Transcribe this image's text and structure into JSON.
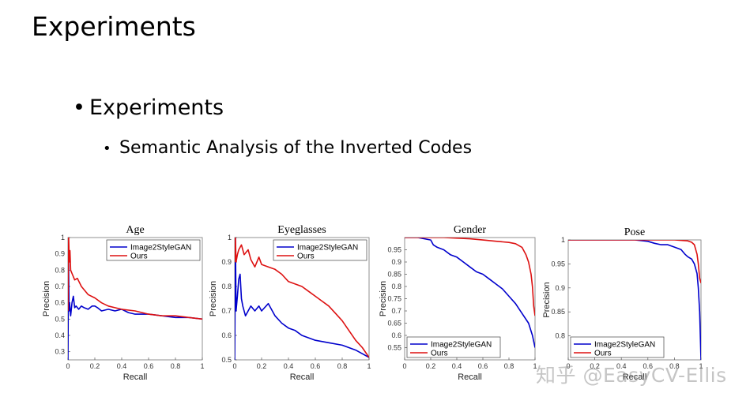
{
  "slide": {
    "title": "Experiments",
    "bullet_level1": "Experiments",
    "bullet_level2": "Semantic Analysis of the Inverted Codes",
    "bullet_glyph": "•",
    "watermark": "知乎 @EasyCV-Ellis"
  },
  "colors": {
    "image2stylegan": "#0000cc",
    "ours": "#dd1111"
  },
  "chart_data": [
    {
      "type": "line",
      "title": "Age",
      "xlabel": "Recall",
      "ylabel": "Precision",
      "xlim": [
        0,
        1
      ],
      "ylim": [
        0.25,
        1
      ],
      "xticks": [
        0,
        0.2,
        0.4,
        0.6,
        0.8,
        1
      ],
      "xtick_labels": [
        "0",
        "0.2",
        "0.4",
        "0.6",
        "0.8",
        "1"
      ],
      "yticks": [
        0.3,
        0.4,
        0.5,
        0.6,
        0.7,
        0.8,
        0.9,
        1
      ],
      "ytick_labels": [
        "0.3",
        "0.4",
        "0.5",
        "0.6",
        "0.7",
        "0.8",
        "0.9",
        "1"
      ],
      "legend": "top-right",
      "series": [
        {
          "name": "Image2StyleGAN",
          "color": "#0000cc",
          "x": [
            0,
            0.004,
            0.008,
            0.012,
            0.02,
            0.03,
            0.04,
            0.05,
            0.06,
            0.08,
            0.1,
            0.12,
            0.15,
            0.18,
            0.2,
            0.22,
            0.25,
            0.3,
            0.35,
            0.4,
            0.45,
            0.5,
            0.6,
            0.7,
            0.8,
            0.9,
            1.0
          ],
          "y": [
            0.25,
            0.9,
            0.55,
            0.6,
            0.52,
            0.6,
            0.64,
            0.57,
            0.58,
            0.56,
            0.58,
            0.57,
            0.56,
            0.58,
            0.58,
            0.57,
            0.55,
            0.56,
            0.55,
            0.56,
            0.54,
            0.53,
            0.53,
            0.52,
            0.51,
            0.51,
            0.5
          ]
        },
        {
          "name": "Ours",
          "color": "#dd1111",
          "x": [
            0,
            0.005,
            0.01,
            0.015,
            0.02,
            0.03,
            0.04,
            0.05,
            0.07,
            0.1,
            0.12,
            0.15,
            0.2,
            0.25,
            0.3,
            0.35,
            0.4,
            0.5,
            0.6,
            0.7,
            0.8,
            0.9,
            1.0
          ],
          "y": [
            0.55,
            1.0,
            0.85,
            0.92,
            0.8,
            0.78,
            0.76,
            0.74,
            0.75,
            0.7,
            0.68,
            0.65,
            0.63,
            0.6,
            0.58,
            0.57,
            0.56,
            0.55,
            0.53,
            0.52,
            0.52,
            0.51,
            0.5
          ]
        }
      ]
    },
    {
      "type": "line",
      "title": "Eyeglasses",
      "xlabel": "Recall",
      "ylabel": "Precision",
      "xlim": [
        0,
        1
      ],
      "ylim": [
        0.5,
        1
      ],
      "xticks": [
        0,
        0.2,
        0.4,
        0.6,
        0.8,
        1
      ],
      "xtick_labels": [
        "0",
        "0.2",
        "0.4",
        "0.6",
        "0.8",
        "1"
      ],
      "yticks": [
        0.5,
        0.6,
        0.7,
        0.8,
        0.9,
        1
      ],
      "ytick_labels": [
        "0.5",
        "0.6",
        "0.7",
        "0.8",
        "0.9",
        "1"
      ],
      "legend": "top-right",
      "series": [
        {
          "name": "Image2StyleGAN",
          "color": "#0000cc",
          "x": [
            0,
            0.005,
            0.01,
            0.02,
            0.03,
            0.04,
            0.05,
            0.06,
            0.08,
            0.1,
            0.12,
            0.15,
            0.18,
            0.2,
            0.25,
            0.3,
            0.35,
            0.4,
            0.45,
            0.5,
            0.55,
            0.6,
            0.7,
            0.8,
            0.9,
            1.0
          ],
          "y": [
            0.5,
            1.0,
            0.7,
            0.76,
            0.83,
            0.85,
            0.75,
            0.72,
            0.68,
            0.7,
            0.72,
            0.7,
            0.72,
            0.7,
            0.73,
            0.68,
            0.65,
            0.63,
            0.62,
            0.6,
            0.59,
            0.58,
            0.57,
            0.56,
            0.54,
            0.51
          ]
        },
        {
          "name": "Ours",
          "color": "#dd1111",
          "x": [
            0,
            0.005,
            0.01,
            0.02,
            0.03,
            0.05,
            0.07,
            0.1,
            0.12,
            0.15,
            0.18,
            0.2,
            0.25,
            0.3,
            0.35,
            0.4,
            0.45,
            0.5,
            0.55,
            0.6,
            0.65,
            0.7,
            0.75,
            0.8,
            0.85,
            0.9,
            0.95,
            1.0
          ],
          "y": [
            0.9,
            1.0,
            0.9,
            0.93,
            0.95,
            0.97,
            0.93,
            0.95,
            0.91,
            0.88,
            0.92,
            0.89,
            0.88,
            0.87,
            0.85,
            0.82,
            0.81,
            0.8,
            0.78,
            0.76,
            0.74,
            0.72,
            0.69,
            0.66,
            0.62,
            0.58,
            0.55,
            0.51
          ]
        }
      ]
    },
    {
      "type": "line",
      "title": "Gender",
      "xlabel": "Recall",
      "ylabel": "Precision",
      "xlim": [
        0,
        1
      ],
      "ylim": [
        0.5,
        1
      ],
      "xticks": [
        0,
        0.2,
        0.4,
        0.6,
        0.8,
        1
      ],
      "xtick_labels": [
        "0",
        "0.2",
        "0.4",
        "0.6",
        "0.8",
        "1"
      ],
      "yticks": [
        0.55,
        0.6,
        0.65,
        0.7,
        0.75,
        0.8,
        0.85,
        0.9,
        0.95
      ],
      "ytick_labels": [
        "0.55",
        "0.6",
        "0.65",
        "0.7",
        "0.75",
        "0.8",
        "0.85",
        "0.9",
        "0.95"
      ],
      "legend": "bottom-left",
      "series": [
        {
          "name": "Image2StyleGAN",
          "color": "#0000cc",
          "x": [
            0,
            0.1,
            0.2,
            0.22,
            0.25,
            0.3,
            0.35,
            0.4,
            0.45,
            0.5,
            0.55,
            0.6,
            0.65,
            0.7,
            0.75,
            0.8,
            0.85,
            0.9,
            0.95,
            0.98,
            1.0
          ],
          "y": [
            1.0,
            1.0,
            0.99,
            0.97,
            0.96,
            0.95,
            0.93,
            0.92,
            0.9,
            0.88,
            0.86,
            0.85,
            0.83,
            0.81,
            0.79,
            0.76,
            0.73,
            0.69,
            0.65,
            0.6,
            0.55
          ]
        },
        {
          "name": "Ours",
          "color": "#dd1111",
          "x": [
            0,
            0.3,
            0.5,
            0.6,
            0.7,
            0.8,
            0.85,
            0.9,
            0.93,
            0.95,
            0.97,
            0.98,
            0.99,
            1.0
          ],
          "y": [
            1.0,
            1.0,
            0.995,
            0.99,
            0.985,
            0.98,
            0.975,
            0.96,
            0.93,
            0.9,
            0.85,
            0.8,
            0.72,
            0.68
          ]
        }
      ]
    },
    {
      "type": "line",
      "title": "Pose",
      "xlabel": "Recall",
      "ylabel": "Precision",
      "xlim": [
        0,
        1
      ],
      "ylim": [
        0.75,
        1
      ],
      "xticks": [
        0,
        0.2,
        0.4,
        0.6,
        0.8,
        1
      ],
      "xtick_labels": [
        "0",
        "0.2",
        "0.4",
        "0.6",
        "0.8",
        "1"
      ],
      "yticks": [
        0.8,
        0.85,
        0.9,
        0.95,
        1
      ],
      "ytick_labels": [
        "0.8",
        "0.85",
        "0.9",
        "0.95",
        "1"
      ],
      "legend": "bottom-left",
      "series": [
        {
          "name": "Image2StyleGAN",
          "color": "#0000cc",
          "x": [
            0,
            0.5,
            0.6,
            0.65,
            0.7,
            0.75,
            0.8,
            0.85,
            0.88,
            0.9,
            0.93,
            0.95,
            0.97,
            0.98,
            0.99,
            1.0
          ],
          "y": [
            1.0,
            1.0,
            0.997,
            0.993,
            0.99,
            0.99,
            0.985,
            0.98,
            0.97,
            0.965,
            0.96,
            0.95,
            0.93,
            0.9,
            0.85,
            0.75
          ]
        },
        {
          "name": "Ours",
          "color": "#dd1111",
          "x": [
            0,
            0.5,
            0.8,
            0.9,
            0.93,
            0.95,
            0.97,
            0.98,
            0.99,
            1.0
          ],
          "y": [
            1.0,
            1.0,
            1.0,
            0.998,
            0.995,
            0.99,
            0.97,
            0.95,
            0.92,
            0.91
          ]
        }
      ]
    }
  ]
}
